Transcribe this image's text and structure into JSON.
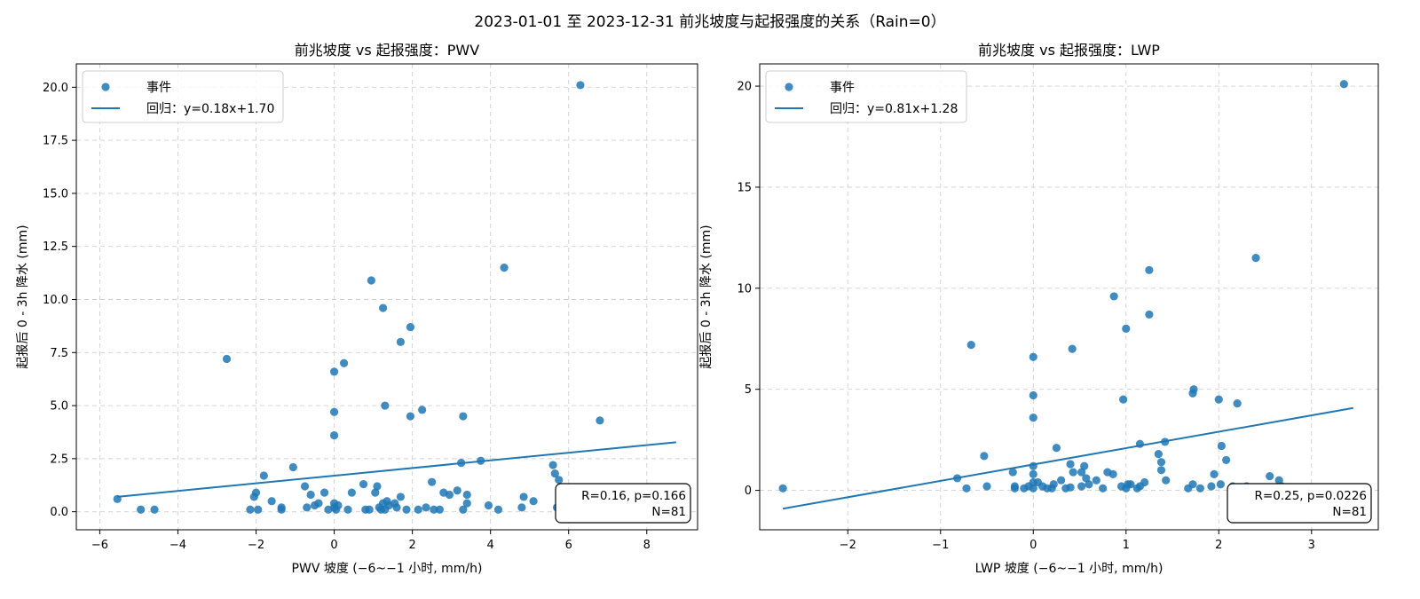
{
  "figure": {
    "suptitle": "2023-01-01 至 2023-12-31  前兆坡度与起报强度的关系（Rain=0）",
    "point_color": "#1f77b4",
    "line_color": "#1f77b4"
  },
  "chart_data": [
    {
      "type": "scatter",
      "title": "前兆坡度 vs 起报强度：PWV",
      "xlabel": "PWV 坡度 (−6~−1 小时, mm/h)",
      "ylabel": "起报后 0 - 3h 降水 (mm)",
      "xlim": [
        -6.6,
        9.3
      ],
      "ylim": [
        -0.85,
        21.1
      ],
      "xticks": [
        -6,
        -4,
        -2,
        0,
        2,
        4,
        6,
        8
      ],
      "xtick_labels": [
        "−6",
        "−4",
        "−2",
        "0",
        "2",
        "4",
        "6",
        "8"
      ],
      "yticks": [
        0,
        2.5,
        5,
        7.5,
        10,
        12.5,
        15,
        17.5,
        20
      ],
      "ytick_labels": [
        "0.0",
        "2.5",
        "5.0",
        "7.5",
        "10.0",
        "12.5",
        "15.0",
        "17.5",
        "20.0"
      ],
      "grid": true,
      "legend_position": "upper-left",
      "legend": {
        "scatter_label": "事件",
        "line_label": "回归：y=0.18x+1.70"
      },
      "stats": {
        "line1": "R=0.16, p=0.166",
        "line2": "N=81"
      },
      "regression": {
        "slope": 0.18,
        "intercept": 1.7,
        "x_range": [
          -5.55,
          8.75
        ]
      },
      "points": [
        [
          6.3,
          20.1
        ],
        [
          4.35,
          11.5
        ],
        [
          0.95,
          10.9
        ],
        [
          1.25,
          9.6
        ],
        [
          1.95,
          8.7
        ],
        [
          1.7,
          8.0
        ],
        [
          -2.75,
          7.2
        ],
        [
          0.25,
          7.0
        ],
        [
          0.0,
          6.6
        ],
        [
          0.0,
          4.7
        ],
        [
          1.3,
          5.0
        ],
        [
          2.25,
          4.8
        ],
        [
          3.3,
          4.5
        ],
        [
          1.95,
          4.5
        ],
        [
          6.8,
          4.3
        ],
        [
          0.0,
          3.6
        ],
        [
          3.75,
          2.4
        ],
        [
          3.25,
          2.3
        ],
        [
          5.6,
          2.2
        ],
        [
          -1.05,
          2.1
        ],
        [
          5.65,
          1.8
        ],
        [
          -1.8,
          1.7
        ],
        [
          5.75,
          1.5
        ],
        [
          2.5,
          1.4
        ],
        [
          0.75,
          1.3
        ],
        [
          -0.75,
          1.2
        ],
        [
          1.1,
          1.2
        ],
        [
          3.15,
          1.0
        ],
        [
          -2.0,
          0.9
        ],
        [
          -0.25,
          0.9
        ],
        [
          0.45,
          0.9
        ],
        [
          1.05,
          0.9
        ],
        [
          2.8,
          0.9
        ],
        [
          -0.6,
          0.8
        ],
        [
          2.95,
          0.8
        ],
        [
          3.4,
          0.8
        ],
        [
          -2.05,
          0.7
        ],
        [
          1.7,
          0.7
        ],
        [
          4.85,
          0.7
        ],
        [
          -5.55,
          0.6
        ],
        [
          -1.6,
          0.5
        ],
        [
          -0.4,
          0.4
        ],
        [
          1.35,
          0.5
        ],
        [
          1.25,
          0.4
        ],
        [
          1.55,
          0.4
        ],
        [
          1.4,
          0.3
        ],
        [
          5.1,
          0.5
        ],
        [
          3.4,
          0.4
        ],
        [
          -1.35,
          0.2
        ],
        [
          -0.7,
          0.2
        ],
        [
          0.0,
          0.4
        ],
        [
          0.1,
          0.3
        ],
        [
          0.0,
          0.2
        ],
        [
          2.35,
          0.2
        ],
        [
          3.95,
          0.3
        ],
        [
          4.8,
          0.2
        ],
        [
          1.6,
          0.2
        ],
        [
          5.7,
          0.2
        ],
        [
          6.1,
          0.2
        ],
        [
          1.85,
          0.1
        ],
        [
          -4.95,
          0.1
        ],
        [
          -4.6,
          0.1
        ],
        [
          -2.15,
          0.1
        ],
        [
          -1.95,
          0.1
        ],
        [
          -1.35,
          0.1
        ],
        [
          -0.15,
          0.1
        ],
        [
          0.05,
          0.1
        ],
        [
          0.35,
          0.1
        ],
        [
          0.8,
          0.1
        ],
        [
          0.9,
          0.1
        ],
        [
          1.2,
          0.1
        ],
        [
          1.3,
          0.1
        ],
        [
          2.7,
          0.1
        ],
        [
          3.3,
          0.1
        ],
        [
          2.55,
          0.1
        ],
        [
          2.15,
          0.1
        ],
        [
          7.95,
          0.15
        ],
        [
          4.2,
          0.1
        ],
        [
          6.0,
          0.1
        ],
        [
          -0.5,
          0.3
        ],
        [
          1.15,
          0.2
        ]
      ]
    },
    {
      "type": "scatter",
      "title": "前兆坡度 vs 起报强度：LWP",
      "xlabel": "LWP 坡度 (−6~−1 小时, mm/h)",
      "ylabel": "起报后 0 - 3h 降水 (mm)",
      "xlim": [
        -2.95,
        3.72
      ],
      "ylim": [
        -1.95,
        21.1
      ],
      "xticks": [
        -2,
        -1,
        0,
        1,
        2,
        3
      ],
      "xtick_labels": [
        "−2",
        "−1",
        "0",
        "1",
        "2",
        "3"
      ],
      "yticks": [
        0,
        5,
        10,
        15,
        20
      ],
      "ytick_labels": [
        "0",
        "5",
        "10",
        "15",
        "20"
      ],
      "grid": true,
      "legend_position": "upper-left",
      "legend": {
        "scatter_label": "事件",
        "line_label": "回归：y=0.81x+1.28"
      },
      "stats": {
        "line1": "R=0.25, p=0.0226",
        "line2": "N=81"
      },
      "regression": {
        "slope": 0.81,
        "intercept": 1.28,
        "x_range": [
          -2.7,
          3.45
        ]
      },
      "points": [
        [
          3.35,
          20.1
        ],
        [
          2.4,
          11.5
        ],
        [
          1.25,
          10.9
        ],
        [
          0.87,
          9.6
        ],
        [
          1.25,
          8.7
        ],
        [
          1.0,
          8.0
        ],
        [
          -0.67,
          7.2
        ],
        [
          0.42,
          7.0
        ],
        [
          0.0,
          6.6
        ],
        [
          1.73,
          5.0
        ],
        [
          1.72,
          4.8
        ],
        [
          0.0,
          4.7
        ],
        [
          0.97,
          4.5
        ],
        [
          2.0,
          4.5
        ],
        [
          2.2,
          4.3
        ],
        [
          0.0,
          3.6
        ],
        [
          1.42,
          2.4
        ],
        [
          1.15,
          2.3
        ],
        [
          2.03,
          2.2
        ],
        [
          0.25,
          2.1
        ],
        [
          1.35,
          1.8
        ],
        [
          -0.53,
          1.7
        ],
        [
          2.08,
          1.5
        ],
        [
          1.38,
          1.4
        ],
        [
          0.4,
          1.3
        ],
        [
          0.0,
          1.2
        ],
        [
          0.55,
          1.2
        ],
        [
          1.38,
          1.0
        ],
        [
          -0.22,
          0.9
        ],
        [
          0.43,
          0.9
        ],
        [
          0.52,
          0.9
        ],
        [
          0.8,
          0.9
        ],
        [
          1.95,
          0.8
        ],
        [
          0.0,
          0.8
        ],
        [
          0.86,
          0.8
        ],
        [
          2.55,
          0.7
        ],
        [
          -0.82,
          0.6
        ],
        [
          0.57,
          0.6
        ],
        [
          2.65,
          0.5
        ],
        [
          1.43,
          0.5
        ],
        [
          0.68,
          0.5
        ],
        [
          0.3,
          0.5
        ],
        [
          0.0,
          0.4
        ],
        [
          0.05,
          0.4
        ],
        [
          1.2,
          0.4
        ],
        [
          1.02,
          0.3
        ],
        [
          0.95,
          0.2
        ],
        [
          1.05,
          0.3
        ],
        [
          1.72,
          0.3
        ],
        [
          2.02,
          0.3
        ],
        [
          2.3,
          0.2
        ],
        [
          2.68,
          0.2
        ],
        [
          -0.72,
          0.1
        ],
        [
          -0.5,
          0.2
        ],
        [
          -0.2,
          0.2
        ],
        [
          -0.2,
          0.1
        ],
        [
          -0.1,
          0.1
        ],
        [
          -0.05,
          0.2
        ],
        [
          0.0,
          0.1
        ],
        [
          0.1,
          0.2
        ],
        [
          0.15,
          0.1
        ],
        [
          0.2,
          0.1
        ],
        [
          0.35,
          0.1
        ],
        [
          0.52,
          0.2
        ],
        [
          0.75,
          0.1
        ],
        [
          1.0,
          0.1
        ],
        [
          1.12,
          0.1
        ],
        [
          1.15,
          0.2
        ],
        [
          1.67,
          0.1
        ],
        [
          1.92,
          0.2
        ],
        [
          2.15,
          0.2
        ],
        [
          2.35,
          0.1
        ],
        [
          2.4,
          0.1
        ],
        [
          2.7,
          0.0
        ],
        [
          3.45,
          0.1
        ],
        [
          -2.7,
          0.1
        ],
        [
          0.22,
          0.3
        ],
        [
          0.6,
          0.3
        ],
        [
          1.8,
          0.1
        ],
        [
          2.5,
          0.1
        ],
        [
          0.4,
          0.15
        ]
      ]
    }
  ]
}
